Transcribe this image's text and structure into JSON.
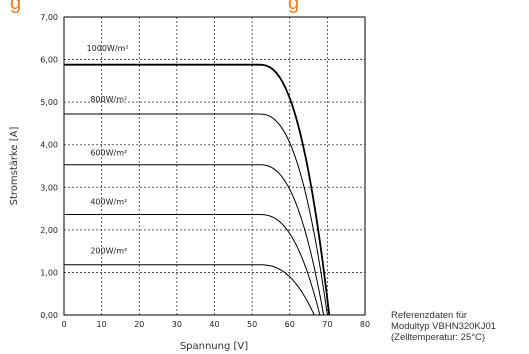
{
  "header": {
    "title_fragment_left": "g",
    "title_fragment_right": "g"
  },
  "chart_data": {
    "type": "line",
    "title": "",
    "xlabel": "Spannung [V]",
    "ylabel": "Stromstärke [A]",
    "xlim": [
      0,
      80
    ],
    "ylim": [
      0,
      7
    ],
    "x_ticks": [
      "0",
      "10",
      "20",
      "30",
      "40",
      "50",
      "60",
      "70",
      "80"
    ],
    "y_ticks": [
      "0,00",
      "1,00",
      "2,00",
      "3,00",
      "4,00",
      "5,00",
      "6,00",
      "7,00"
    ],
    "grid": true,
    "series": [
      {
        "name": "1000W/m²",
        "isc": 5.88,
        "voc": 70.5,
        "knee_v": 52,
        "label_pos": [
          6,
          6.2
        ]
      },
      {
        "name": "800W/m²",
        "isc": 4.72,
        "voc": 70.0,
        "knee_v": 52,
        "label_pos": [
          7,
          5.0
        ]
      },
      {
        "name": "600W/m²",
        "isc": 3.53,
        "voc": 69.0,
        "knee_v": 52,
        "label_pos": [
          7,
          3.75
        ]
      },
      {
        "name": "400W/m²",
        "isc": 2.36,
        "voc": 68.0,
        "knee_v": 52,
        "label_pos": [
          7,
          2.6
        ]
      },
      {
        "name": "200W/m²",
        "isc": 1.18,
        "voc": 66.5,
        "knee_v": 52,
        "label_pos": [
          7,
          1.45
        ]
      }
    ]
  },
  "reference_note": {
    "line1": "Referenzdaten für",
    "line2": "Modultyp VBHN320KJ01",
    "line3": "(Zelltemperatur: 25°C)"
  }
}
